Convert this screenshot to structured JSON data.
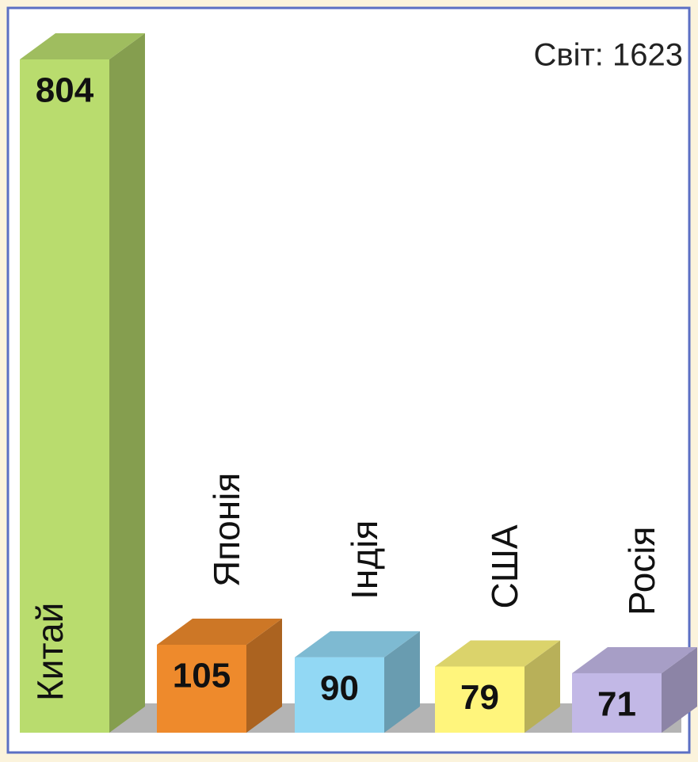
{
  "chart_data": {
    "type": "bar3d",
    "annotation": "Світ: 1623",
    "categories": [
      "Китай",
      "Японія",
      "Індія",
      "США",
      "Росія"
    ],
    "values": [
      804,
      105,
      90,
      79,
      71
    ],
    "colors": [
      "#b9dc6e",
      "#ee8a2c",
      "#92d8f4",
      "#fff57c",
      "#c2b8e6"
    ]
  }
}
